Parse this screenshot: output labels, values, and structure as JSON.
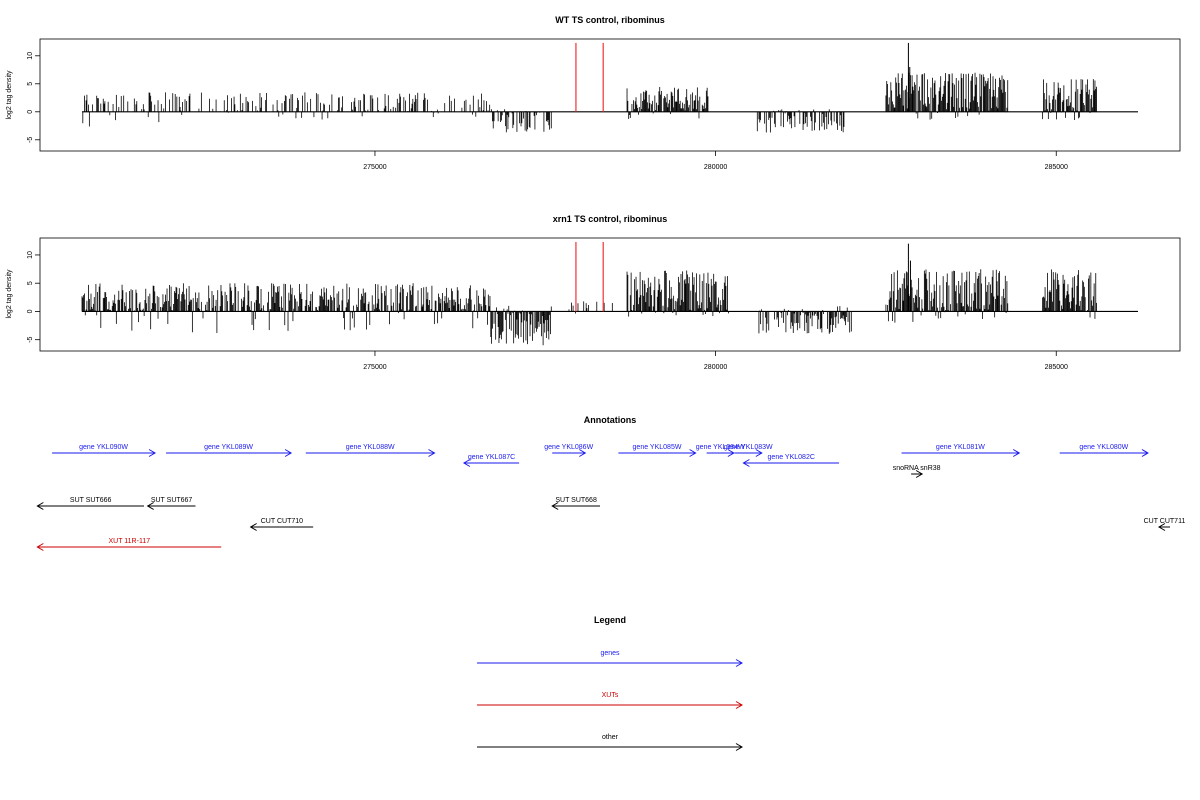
{
  "colors": {
    "track": "#000000",
    "highlight": "#ee3333",
    "gene": "#1a1aee",
    "xut": "#cc0000",
    "other": "#000000"
  },
  "chart_data": [
    {
      "type": "bar",
      "title": "WT TS control, ribominus",
      "ylabel": "log2 tag density",
      "xlim": [
        270700,
        286200
      ],
      "ylim": [
        -7,
        13
      ],
      "yticks": [
        -5,
        0,
        5,
        10
      ],
      "xticks": [
        275000,
        280000,
        285000
      ],
      "xticklabels": [
        "275000",
        "280000",
        "285000"
      ],
      "highlight_positions": [
        277950,
        278350
      ],
      "highlight_height": 12.3,
      "segments": [
        {
          "start": 270700,
          "end": 273000,
          "positive_max": 3.5,
          "negative_max": -3,
          "density": 0.35
        },
        {
          "start": 273000,
          "end": 276700,
          "positive_max": 3.5,
          "negative_max": -1.5,
          "density": 0.4
        },
        {
          "start": 276700,
          "end": 277600,
          "positive_max": 0.5,
          "negative_max": -3.8,
          "density": 0.6
        },
        {
          "start": 278700,
          "end": 279900,
          "positive_max": 4.5,
          "negative_max": -1.5,
          "density": 0.9
        },
        {
          "start": 280600,
          "end": 281900,
          "positive_max": 0.5,
          "negative_max": -3.8,
          "density": 0.6
        },
        {
          "start": 282500,
          "end": 284300,
          "positive_max": 7,
          "negative_max": -1.5,
          "density": 0.95
        },
        {
          "start": 284800,
          "end": 285600,
          "positive_max": 6,
          "negative_max": -1.5,
          "density": 0.95
        }
      ],
      "peaks": [
        {
          "x": 282830,
          "y": 12.3
        },
        {
          "x": 282850,
          "y": 8
        }
      ]
    },
    {
      "type": "bar",
      "title": "xrn1 TS control, ribominus",
      "ylabel": "log2 tag density",
      "xlim": [
        270700,
        286200
      ],
      "ylim": [
        -7,
        13
      ],
      "yticks": [
        -5,
        0,
        5,
        10
      ],
      "xticks": [
        275000,
        280000,
        285000
      ],
      "xticklabels": [
        "275000",
        "280000",
        "285000"
      ],
      "highlight_positions": [
        277950,
        278350
      ],
      "highlight_height": 12.3,
      "segments": [
        {
          "start": 270700,
          "end": 276700,
          "positive_max": 5,
          "negative_max": -4,
          "density": 0.8
        },
        {
          "start": 276700,
          "end": 277600,
          "positive_max": 1,
          "negative_max": -6,
          "density": 0.9
        },
        {
          "start": 277800,
          "end": 278500,
          "positive_max": 2,
          "negative_max": -0.5,
          "density": 0.15
        },
        {
          "start": 278700,
          "end": 280200,
          "positive_max": 7.3,
          "negative_max": -1,
          "density": 0.95
        },
        {
          "start": 280600,
          "end": 282000,
          "positive_max": 1,
          "negative_max": -4,
          "density": 0.6
        },
        {
          "start": 282500,
          "end": 284300,
          "positive_max": 7.5,
          "negative_max": -2,
          "density": 0.95
        },
        {
          "start": 284800,
          "end": 285600,
          "positive_max": 7.5,
          "negative_max": -2,
          "density": 0.95
        }
      ],
      "peaks": [
        {
          "x": 282830,
          "y": 12
        },
        {
          "x": 282860,
          "y": 9
        }
      ]
    }
  ],
  "annotations": {
    "title": "Annotations",
    "xlim": [
      270700,
      286200
    ],
    "features": [
      {
        "label": "gene YKL090W",
        "class": "gene",
        "start": 271000,
        "end": 272400,
        "strand": "+",
        "row": 0
      },
      {
        "label": "gene YKL089W",
        "class": "gene",
        "start": 272550,
        "end": 274250,
        "strand": "+",
        "row": 0
      },
      {
        "label": "gene YKL088W",
        "class": "gene",
        "start": 274450,
        "end": 276200,
        "strand": "+",
        "row": 0
      },
      {
        "label": "gene YKL087C",
        "class": "gene",
        "start": 276600,
        "end": 277350,
        "strand": "-",
        "row": 1
      },
      {
        "label": "gene YKL086W",
        "class": "gene",
        "start": 277800,
        "end": 278250,
        "strand": "+",
        "row": 0
      },
      {
        "label": "gene YKL085W",
        "class": "gene",
        "start": 278700,
        "end": 279750,
        "strand": "+",
        "row": 0
      },
      {
        "label": "gene YKL084W",
        "class": "gene",
        "start": 279900,
        "end": 280270,
        "strand": "+",
        "row": 0
      },
      {
        "label": "gene YKL083W",
        "class": "gene",
        "start": 280280,
        "end": 280650,
        "strand": "+",
        "row": 0
      },
      {
        "label": "gene YKL082C",
        "class": "gene",
        "start": 280400,
        "end": 281700,
        "strand": "-",
        "row": 1
      },
      {
        "label": "gene YKL081W",
        "class": "gene",
        "start": 282550,
        "end": 284150,
        "strand": "+",
        "row": 0
      },
      {
        "label": "gene YKL080W",
        "class": "gene",
        "start": 284700,
        "end": 285900,
        "strand": "+",
        "row": 0
      },
      {
        "label": "snoRNA snR38",
        "class": "other",
        "start": 282680,
        "end": 282830,
        "strand": "+",
        "row": 2
      },
      {
        "label": "SUT SUT666",
        "class": "other",
        "start": 270800,
        "end": 272250,
        "strand": "-",
        "row": 3
      },
      {
        "label": "SUT SUT667",
        "class": "other",
        "start": 272300,
        "end": 272950,
        "strand": "-",
        "row": 3
      },
      {
        "label": "SUT SUT668",
        "class": "other",
        "start": 277800,
        "end": 278450,
        "strand": "-",
        "row": 3
      },
      {
        "label": "CUT CUT710",
        "class": "other",
        "start": 273700,
        "end": 274550,
        "strand": "-",
        "row": 4
      },
      {
        "label": "CUT CUT711",
        "class": "other",
        "start": 286050,
        "end": 286200,
        "strand": "-",
        "row": 4
      },
      {
        "label": "XUT 11R-117",
        "class": "xut",
        "start": 270800,
        "end": 273300,
        "strand": "-",
        "row": 5
      }
    ]
  },
  "legend": {
    "title": "Legend",
    "items": [
      {
        "label": "genes",
        "class": "gene"
      },
      {
        "label": "XUTs",
        "class": "xut"
      },
      {
        "label": "other",
        "class": "other"
      }
    ]
  }
}
